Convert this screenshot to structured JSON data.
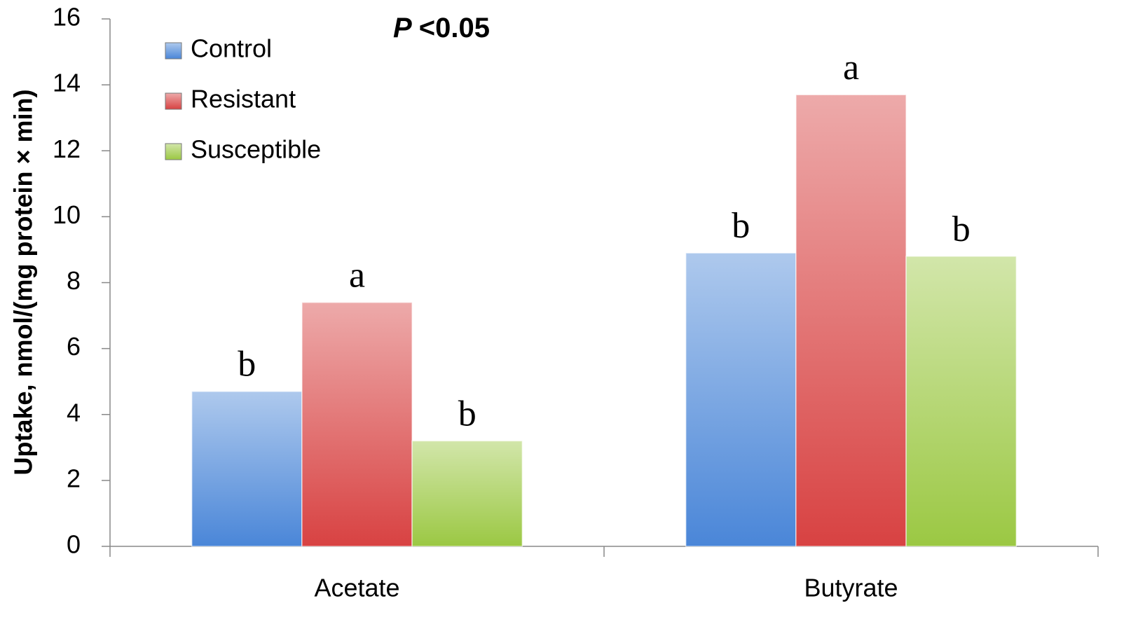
{
  "chart_data": {
    "type": "bar",
    "ylabel": "Uptake, nmol/(mg protein × min)",
    "annotation": {
      "symbol": "P",
      "text": "<0.05"
    },
    "categories": [
      "Acetate",
      "Butyrate"
    ],
    "series": [
      {
        "name": "Control",
        "color": "#4a86d8",
        "values": [
          4.7,
          8.9
        ],
        "letters": [
          "b",
          "b"
        ]
      },
      {
        "name": "Resistant",
        "color": "#d84242",
        "values": [
          7.4,
          13.7
        ],
        "letters": [
          "a",
          "a"
        ]
      },
      {
        "name": "Susceptible",
        "color": "#9bc843",
        "values": [
          3.2,
          8.8
        ],
        "letters": [
          "b",
          "b"
        ]
      }
    ],
    "ylim": [
      0,
      16
    ],
    "yticks": [
      0,
      2,
      4,
      6,
      8,
      10,
      12,
      14,
      16
    ],
    "grid": false,
    "legend": "top-left"
  }
}
